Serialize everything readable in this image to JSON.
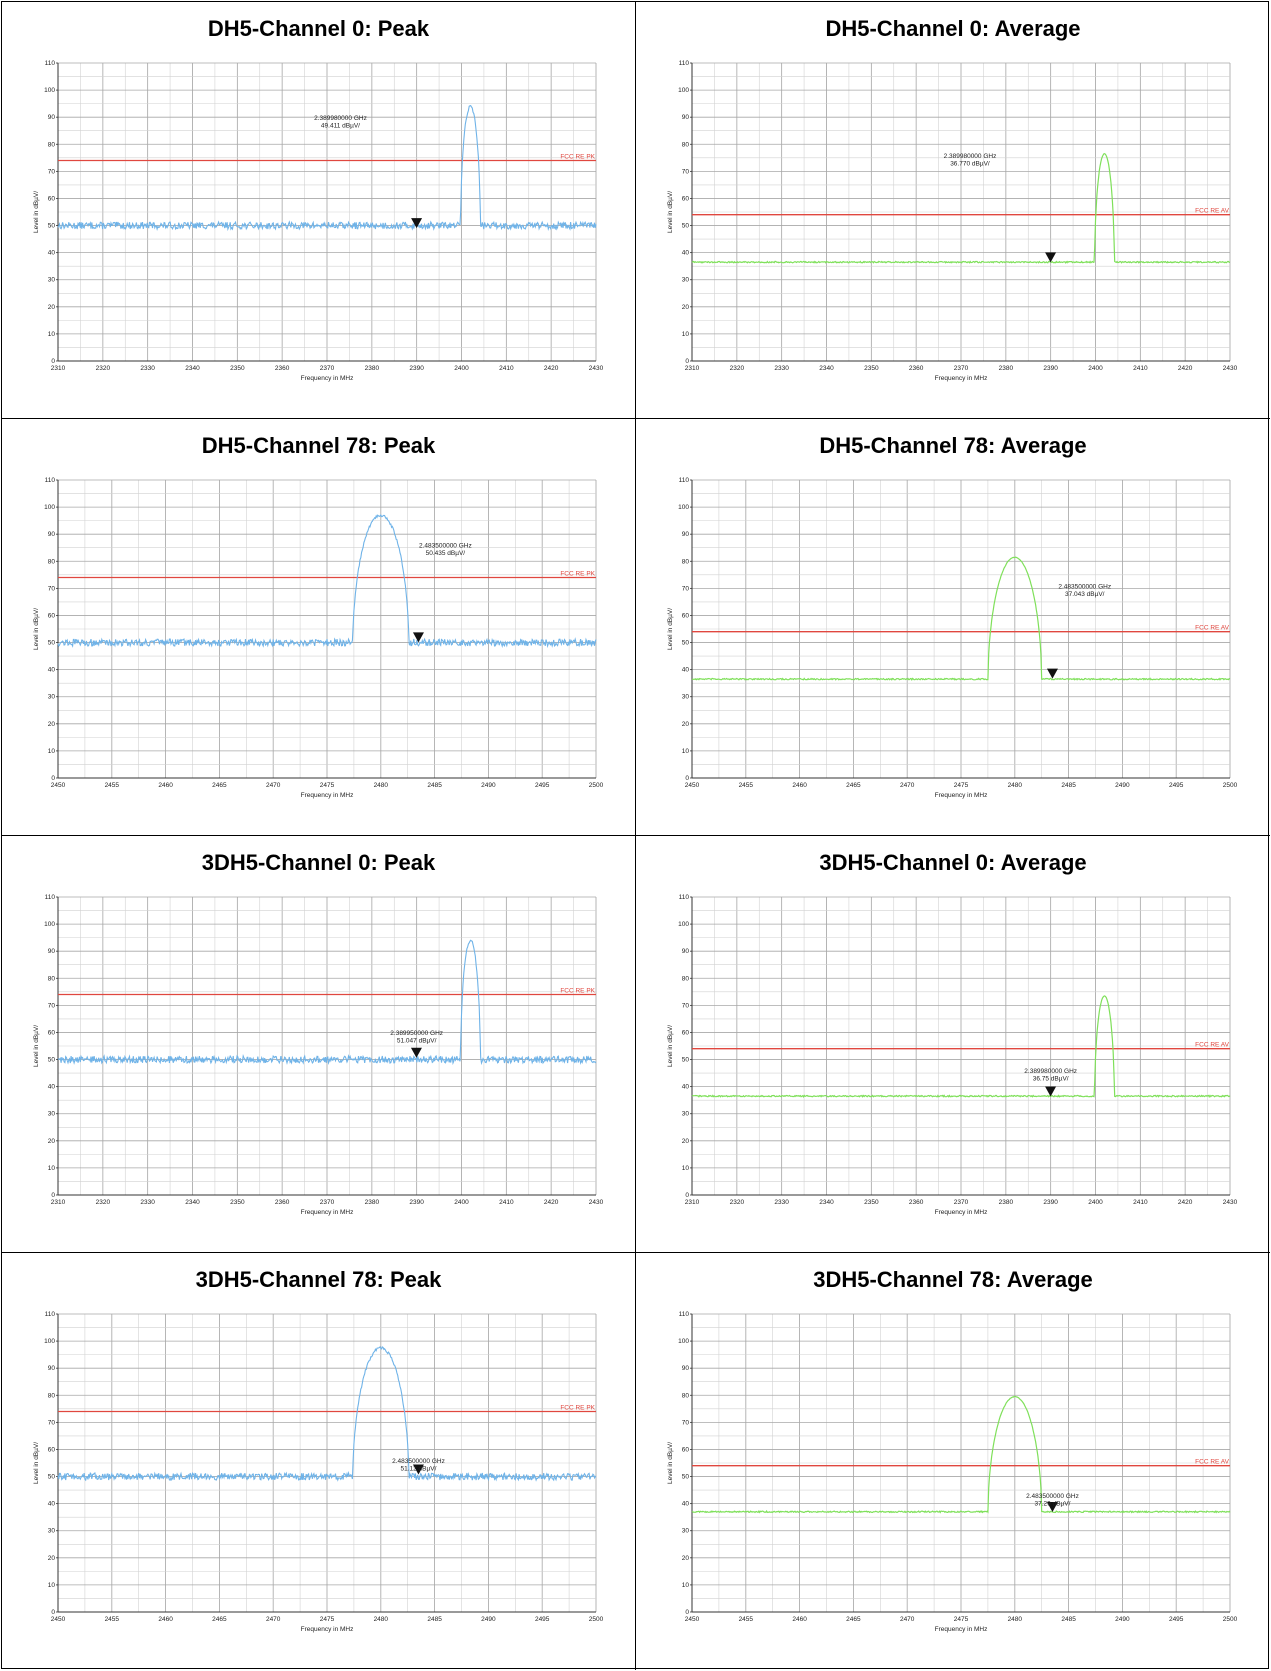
{
  "chart_data": [
    {
      "type": "line",
      "title": "DH5-Channel 0: Peak",
      "xlabel": "Frequency in MHz",
      "ylabel": "Level in dBµV/",
      "xlim": [
        2310,
        2430
      ],
      "ylim": [
        0,
        110
      ],
      "xticks": [
        "2310",
        "2320",
        "2330",
        "2340",
        "2350",
        "2360",
        "2370",
        "2380",
        "2390",
        "2400",
        "2410",
        "2420",
        "2430"
      ],
      "yticks": [
        "0",
        "10",
        "20",
        "30",
        "40",
        "50",
        "60",
        "70",
        "80",
        "90",
        "100",
        "110"
      ],
      "grid": true,
      "series": [
        {
          "color": "#6fb3e8",
          "noise_level": 50,
          "peak_center": 2402,
          "peak_value": 94,
          "peak_halfwidth": 2.2
        }
      ],
      "limit_line": {
        "label": "FCC RE PK",
        "value": 74,
        "color": "#e0473f"
      },
      "marker": {
        "x": 2389.98,
        "y": 49.411,
        "freq_text": "2.389980000 GHz",
        "level_text": "49.411 dBµV/",
        "label_x": 2373,
        "label_y": 89
      }
    },
    {
      "type": "line",
      "title": "DH5-Channel 0: Average",
      "xlabel": "Frequency in MHz",
      "ylabel": "Level in dBµV/",
      "xlim": [
        2310,
        2430
      ],
      "ylim": [
        0,
        110
      ],
      "xticks": [
        "2310",
        "2320",
        "2330",
        "2340",
        "2350",
        "2360",
        "2370",
        "2380",
        "2390",
        "2400",
        "2410",
        "2420",
        "2430"
      ],
      "yticks": [
        "0",
        "10",
        "20",
        "30",
        "40",
        "50",
        "60",
        "70",
        "80",
        "90",
        "100",
        "110"
      ],
      "grid": true,
      "series": [
        {
          "color": "#7fe05a",
          "noise_level": 36.5,
          "peak_center": 2402,
          "peak_value": 76.5,
          "peak_halfwidth": 2.2
        }
      ],
      "limit_line": {
        "label": "FCC RE AV",
        "value": 54,
        "color": "#e0473f"
      },
      "marker": {
        "x": 2389.98,
        "y": 36.77,
        "freq_text": "2.389980000 GHz",
        "level_text": "36.770 dBµV/",
        "label_x": 2372,
        "label_y": 75
      }
    },
    {
      "type": "line",
      "title": "DH5-Channel 78: Peak",
      "xlabel": "Frequency in MHz",
      "ylabel": "Level in dBµV/",
      "xlim": [
        2450,
        2500
      ],
      "ylim": [
        0,
        110
      ],
      "xticks": [
        "2450",
        "2455",
        "2460",
        "2465",
        "2470",
        "2475",
        "2480",
        "2485",
        "2490",
        "2495",
        "2500"
      ],
      "yticks": [
        "0",
        "10",
        "20",
        "30",
        "40",
        "50",
        "60",
        "70",
        "80",
        "90",
        "100",
        "110"
      ],
      "grid": true,
      "series": [
        {
          "color": "#6fb3e8",
          "noise_level": 50,
          "peak_center": 2480,
          "peak_value": 97,
          "peak_halfwidth": 2.6
        }
      ],
      "limit_line": {
        "label": "FCC RE PK",
        "value": 74,
        "color": "#e0473f"
      },
      "marker": {
        "x": 2483.5,
        "y": 50.435,
        "freq_text": "2.483500000 GHz",
        "level_text": "50.435 dBµV/",
        "label_x": 2486,
        "label_y": 85
      }
    },
    {
      "type": "line",
      "title": "DH5-Channel 78: Average",
      "xlabel": "Frequency in MHz",
      "ylabel": "Level in dBµV/",
      "xlim": [
        2450,
        2500
      ],
      "ylim": [
        0,
        110
      ],
      "xticks": [
        "2450",
        "2455",
        "2460",
        "2465",
        "2470",
        "2475",
        "2480",
        "2485",
        "2490",
        "2495",
        "2500"
      ],
      "yticks": [
        "0",
        "10",
        "20",
        "30",
        "40",
        "50",
        "60",
        "70",
        "80",
        "90",
        "100",
        "110"
      ],
      "grid": true,
      "series": [
        {
          "color": "#7fe05a",
          "noise_level": 36.5,
          "peak_center": 2480,
          "peak_value": 81.5,
          "peak_halfwidth": 2.5
        }
      ],
      "limit_line": {
        "label": "FCC RE AV",
        "value": 54,
        "color": "#e0473f"
      },
      "marker": {
        "x": 2483.5,
        "y": 37.043,
        "freq_text": "2.483500000 GHz",
        "level_text": "37.043 dBµV/",
        "label_x": 2486.5,
        "label_y": 70
      }
    },
    {
      "type": "line",
      "title": "3DH5-Channel 0: Peak",
      "xlabel": "Frequency in MHz",
      "ylabel": "Level in dBµV/",
      "xlim": [
        2310,
        2430
      ],
      "ylim": [
        0,
        110
      ],
      "xticks": [
        "2310",
        "2320",
        "2330",
        "2340",
        "2350",
        "2360",
        "2370",
        "2380",
        "2390",
        "2400",
        "2410",
        "2420",
        "2430"
      ],
      "yticks": [
        "0",
        "10",
        "20",
        "30",
        "40",
        "50",
        "60",
        "70",
        "80",
        "90",
        "100",
        "110"
      ],
      "grid": true,
      "series": [
        {
          "color": "#6fb3e8",
          "noise_level": 50,
          "peak_center": 2402,
          "peak_value": 94,
          "peak_halfwidth": 2.2
        }
      ],
      "limit_line": {
        "label": "FCC RE PK",
        "value": 74,
        "color": "#e0473f"
      },
      "marker": {
        "x": 2389.95,
        "y": 51.047,
        "freq_text": "2.389950000 GHz",
        "level_text": "51.047 dBµV/",
        "label_x": 2390,
        "label_y": 59
      }
    },
    {
      "type": "line",
      "title": "3DH5-Channel 0: Average",
      "xlabel": "Frequency in MHz",
      "ylabel": "Level in dBµV/",
      "xlim": [
        2310,
        2430
      ],
      "ylim": [
        0,
        110
      ],
      "xticks": [
        "2310",
        "2320",
        "2330",
        "2340",
        "2350",
        "2360",
        "2370",
        "2380",
        "2390",
        "2400",
        "2410",
        "2420",
        "2430"
      ],
      "yticks": [
        "0",
        "10",
        "20",
        "30",
        "40",
        "50",
        "60",
        "70",
        "80",
        "90",
        "100",
        "110"
      ],
      "grid": true,
      "series": [
        {
          "color": "#7fe05a",
          "noise_level": 36.5,
          "peak_center": 2402,
          "peak_value": 73.5,
          "peak_halfwidth": 2.2
        }
      ],
      "limit_line": {
        "label": "FCC RE AV",
        "value": 54,
        "color": "#e0473f"
      },
      "marker": {
        "x": 2389.98,
        "y": 36.75,
        "freq_text": "2.389980000 GHz",
        "level_text": "36.75 dBµV/",
        "label_x": 2390,
        "label_y": 45
      }
    },
    {
      "type": "line",
      "title": "3DH5-Channel 78: Peak",
      "xlabel": "Frequency in MHz",
      "ylabel": "Level in dBµV/",
      "xlim": [
        2450,
        2500
      ],
      "ylim": [
        0,
        110
      ],
      "xticks": [
        "2450",
        "2455",
        "2460",
        "2465",
        "2470",
        "2475",
        "2480",
        "2485",
        "2490",
        "2495",
        "2500"
      ],
      "yticks": [
        "0",
        "10",
        "20",
        "30",
        "40",
        "50",
        "60",
        "70",
        "80",
        "90",
        "100",
        "110"
      ],
      "grid": true,
      "series": [
        {
          "color": "#6fb3e8",
          "noise_level": 50,
          "peak_center": 2480,
          "peak_value": 97.5,
          "peak_halfwidth": 2.6
        }
      ],
      "limit_line": {
        "label": "FCC RE PK",
        "value": 74,
        "color": "#e0473f"
      },
      "marker": {
        "x": 2483.5,
        "y": 51.12,
        "freq_text": "2.483500000 GHz",
        "level_text": "51.12 dBµV/",
        "label_x": 2483.5,
        "label_y": 55
      }
    },
    {
      "type": "line",
      "title": "3DH5-Channel 78: Average",
      "xlabel": "Frequency in MHz",
      "ylabel": "Level in dBµV/",
      "xlim": [
        2450,
        2500
      ],
      "ylim": [
        0,
        110
      ],
      "xticks": [
        "2450",
        "2455",
        "2460",
        "2465",
        "2470",
        "2475",
        "2480",
        "2485",
        "2490",
        "2495",
        "2500"
      ],
      "yticks": [
        "0",
        "10",
        "20",
        "30",
        "40",
        "50",
        "60",
        "70",
        "80",
        "90",
        "100",
        "110"
      ],
      "grid": true,
      "series": [
        {
          "color": "#7fe05a",
          "noise_level": 37,
          "peak_center": 2480,
          "peak_value": 79.5,
          "peak_halfwidth": 2.5
        }
      ],
      "limit_line": {
        "label": "FCC RE AV",
        "value": 54,
        "color": "#e0473f"
      },
      "marker": {
        "x": 2483.5,
        "y": 37.29,
        "freq_text": "2.483500000 GHz",
        "level_text": "37.29 dBµV/",
        "label_x": 2483.5,
        "label_y": 42
      }
    }
  ]
}
